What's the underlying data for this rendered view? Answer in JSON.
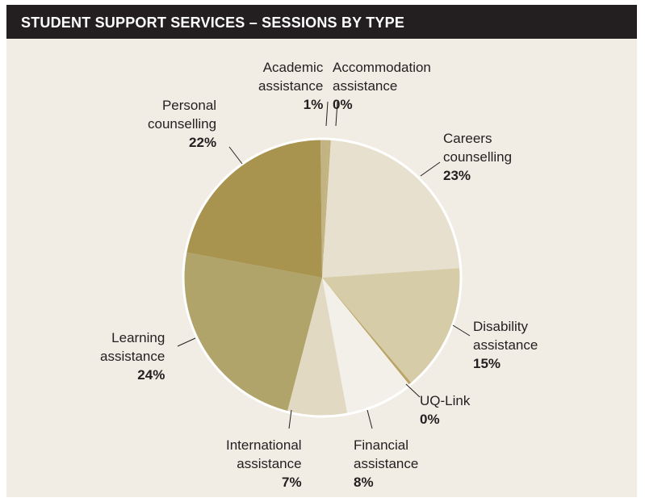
{
  "header": {
    "title": "STUDENT SUPPORT SERVICES – SESSIONS BY TYPE"
  },
  "colors": {
    "header_bg": "#231f20",
    "panel_bg": "#f1ede4",
    "slice_border": "#ffffff",
    "leader": "#231f20"
  },
  "chart_data": {
    "type": "pie",
    "title": "STUDENT SUPPORT SERVICES – SESSIONS BY TYPE",
    "slices": [
      {
        "label_lines": [
          "Accommodation",
          "assistance"
        ],
        "pct_label": "0%",
        "value": 0.3,
        "color": "#c2b27c"
      },
      {
        "label_lines": [
          "Careers",
          "counselling"
        ],
        "pct_label": "23%",
        "value": 23,
        "color": "#e7e0cf"
      },
      {
        "label_lines": [
          "Disability",
          "assistance"
        ],
        "pct_label": "15%",
        "value": 15,
        "color": "#d7cca8"
      },
      {
        "label_lines": [
          "UQ-Link"
        ],
        "pct_label": "0%",
        "value": 0.3,
        "color": "#b9a466"
      },
      {
        "label_lines": [
          "Financial",
          "assistance"
        ],
        "pct_label": "8%",
        "value": 8,
        "color": "#f3f0e9"
      },
      {
        "label_lines": [
          "International",
          "assistance"
        ],
        "pct_label": "7%",
        "value": 7,
        "color": "#e2d9c3"
      },
      {
        "label_lines": [
          "Learning",
          "assistance"
        ],
        "pct_label": "24%",
        "value": 24,
        "color": "#b1a46b"
      },
      {
        "label_lines": [
          "Personal",
          "counselling"
        ],
        "pct_label": "22%",
        "value": 22,
        "color": "#a8944f"
      },
      {
        "label_lines": [
          "Academic",
          "assistance"
        ],
        "pct_label": "1%",
        "value": 0.9,
        "color": "#c2b382"
      }
    ]
  }
}
